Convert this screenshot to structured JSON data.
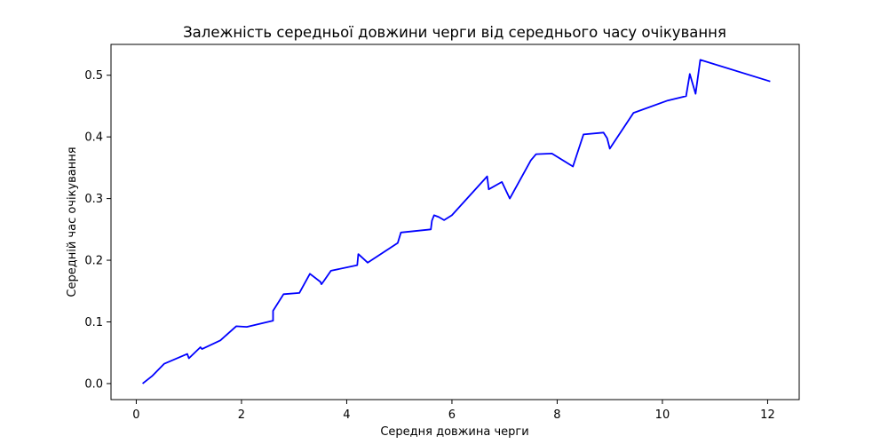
{
  "chart_data": {
    "type": "line",
    "title": "Залежність середньої довжини черги від середнього часу очікування",
    "xlabel": "Середня довжина черги",
    "ylabel": "Середній час очікування",
    "xlim": [
      -0.48,
      12.6
    ],
    "ylim": [
      -0.026,
      0.55
    ],
    "xticks": [
      0,
      2,
      4,
      6,
      8,
      10,
      12
    ],
    "yticks": [
      0.0,
      0.1,
      0.2,
      0.3,
      0.4,
      0.5
    ],
    "x_tick_labels": [
      "0",
      "2",
      "4",
      "6",
      "8",
      "10",
      "12"
    ],
    "y_tick_labels": [
      "0.0",
      "0.1",
      "0.2",
      "0.3",
      "0.4",
      "0.5"
    ],
    "grid": false,
    "legend": "none",
    "series": [
      {
        "color": "#0000ff",
        "x": [
          0.12,
          0.3,
          0.53,
          0.97,
          1.0,
          1.22,
          1.25,
          1.6,
          1.9,
          2.1,
          2.6,
          2.6,
          2.8,
          3.1,
          3.3,
          3.5,
          3.52,
          3.57,
          3.7,
          4.2,
          4.22,
          4.4,
          4.97,
          5.03,
          5.6,
          5.62,
          5.66,
          5.75,
          5.85,
          6.0,
          6.67,
          6.7,
          6.95,
          7.1,
          7.5,
          7.6,
          7.9,
          8.3,
          8.5,
          8.88,
          8.95,
          9.0,
          9.45,
          10.1,
          10.45,
          10.52,
          10.63,
          10.72,
          12.05
        ],
        "y": [
          0.0,
          0.012,
          0.032,
          0.048,
          0.041,
          0.059,
          0.056,
          0.07,
          0.093,
          0.092,
          0.102,
          0.118,
          0.145,
          0.147,
          0.178,
          0.165,
          0.161,
          0.167,
          0.183,
          0.192,
          0.21,
          0.196,
          0.228,
          0.245,
          0.25,
          0.264,
          0.273,
          0.27,
          0.265,
          0.273,
          0.336,
          0.315,
          0.327,
          0.3,
          0.362,
          0.372,
          0.373,
          0.352,
          0.404,
          0.407,
          0.398,
          0.381,
          0.439,
          0.459,
          0.466,
          0.502,
          0.47,
          0.525,
          0.49
        ]
      }
    ]
  }
}
